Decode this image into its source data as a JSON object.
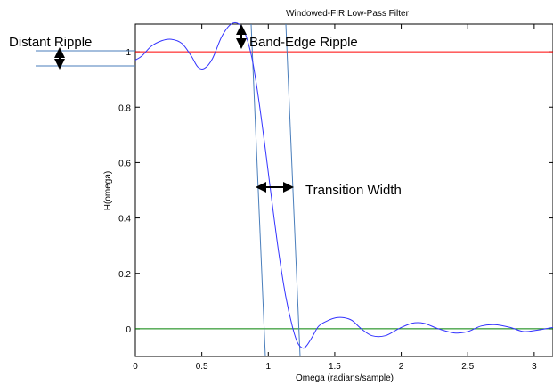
{
  "chart_data": {
    "type": "line",
    "title": "Windowed-FIR Low-Pass Filter",
    "xlabel": "Omega (radians/sample)",
    "ylabel": "H(omega)",
    "xlim": [
      0,
      3.1416
    ],
    "ylim": [
      -0.1,
      1.1
    ],
    "xticks": [
      "0",
      "0.5",
      "1",
      "1.5",
      "2",
      "2.5",
      "3"
    ],
    "xtick_values": [
      0,
      0.5,
      1,
      1.5,
      2,
      2.5,
      3
    ],
    "yticks": [
      "0",
      "0.2",
      "0.4",
      "0.6",
      "0.8",
      "1"
    ],
    "ytick_values": [
      0,
      0.2,
      0.4,
      0.6,
      0.8,
      1
    ],
    "grid": false,
    "reference_lines": [
      {
        "y": 1,
        "color": "#ff0000"
      },
      {
        "y": 0,
        "color": "#008000"
      }
    ],
    "series": [
      {
        "color": "#3333ff",
        "x": [
          0,
          0.05,
          0.12,
          0.2,
          0.27,
          0.35,
          0.42,
          0.47,
          0.52,
          0.58,
          0.65,
          0.72,
          0.78,
          0.83,
          0.88,
          0.93,
          0.98,
          1.03,
          1.08,
          1.13,
          1.18,
          1.22,
          1.26,
          1.29,
          1.33,
          1.38,
          1.45,
          1.51,
          1.57,
          1.63,
          1.7,
          1.78,
          1.88,
          1.98,
          2.08,
          2.17,
          2.28,
          2.4,
          2.5,
          2.6,
          2.7,
          2.82,
          2.92,
          3.02,
          3.1416
        ],
        "y": [
          0.97,
          0.985,
          1.02,
          1.04,
          1.045,
          1.03,
          0.985,
          0.945,
          0.94,
          0.975,
          1.055,
          1.1,
          1.1,
          1.06,
          0.97,
          0.82,
          0.64,
          0.45,
          0.27,
          0.12,
          0.01,
          -0.05,
          -0.07,
          -0.06,
          -0.03,
          0.01,
          0.03,
          0.04,
          0.04,
          0.03,
          0.0,
          -0.025,
          -0.025,
          0.0,
          0.02,
          0.02,
          0.0,
          -0.015,
          -0.01,
          0.01,
          0.015,
          0.005,
          -0.01,
          -0.005,
          0.005
        ]
      }
    ],
    "annotations": [
      {
        "text": "Distant Ripple"
      },
      {
        "text": "Band-Edge Ripple"
      },
      {
        "text": "Transition Width"
      }
    ],
    "colors": {
      "response": "#3333ff",
      "passband_ref": "#ff0000",
      "stopband_ref": "#008000",
      "guide_lines": "#4a7ebb",
      "axes": "#000000"
    }
  }
}
